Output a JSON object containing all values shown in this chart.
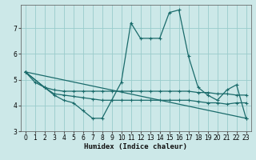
{
  "xlabel": "Humidex (Indice chaleur)",
  "bg_color": "#cce8e8",
  "grid_color": "#99cccc",
  "line_color": "#1a6b6b",
  "xlim": [
    -0.5,
    23.5
  ],
  "ylim": [
    3.0,
    7.9
  ],
  "yticks": [
    3,
    4,
    5,
    6,
    7
  ],
  "xticks": [
    0,
    1,
    2,
    3,
    4,
    5,
    6,
    7,
    8,
    9,
    10,
    11,
    12,
    13,
    14,
    15,
    16,
    17,
    18,
    19,
    20,
    21,
    22,
    23
  ],
  "line1_x": [
    0,
    1,
    2,
    3,
    4,
    5,
    6,
    7,
    8,
    9,
    10,
    11,
    12,
    13,
    14,
    15,
    16,
    17,
    18,
    19,
    20,
    21,
    22,
    23
  ],
  "line1_y": [
    5.3,
    4.9,
    4.7,
    4.4,
    4.2,
    4.1,
    3.8,
    3.5,
    3.5,
    4.2,
    4.9,
    7.2,
    6.6,
    6.6,
    6.6,
    7.6,
    7.7,
    5.9,
    4.7,
    4.4,
    4.2,
    4.6,
    4.8,
    3.5
  ],
  "line2_x": [
    0,
    2,
    3,
    4,
    5,
    6,
    7,
    8,
    9,
    10,
    11,
    12,
    13,
    14,
    15,
    16,
    17,
    18,
    19,
    20,
    21,
    22,
    23
  ],
  "line2_y": [
    5.3,
    4.7,
    4.6,
    4.55,
    4.55,
    4.55,
    4.55,
    4.55,
    4.55,
    4.55,
    4.55,
    4.55,
    4.55,
    4.55,
    4.55,
    4.55,
    4.55,
    4.5,
    4.5,
    4.45,
    4.45,
    4.4,
    4.4
  ],
  "line3_x": [
    0,
    2,
    3,
    4,
    5,
    6,
    7,
    8,
    9,
    10,
    11,
    12,
    13,
    14,
    15,
    16,
    17,
    18,
    19,
    20,
    21,
    22,
    23
  ],
  "line3_y": [
    5.3,
    4.7,
    4.45,
    4.4,
    4.35,
    4.3,
    4.25,
    4.2,
    4.2,
    4.2,
    4.2,
    4.2,
    4.2,
    4.2,
    4.2,
    4.2,
    4.2,
    4.15,
    4.1,
    4.1,
    4.05,
    4.1,
    4.1
  ],
  "line4_x": [
    0,
    23
  ],
  "line4_y": [
    5.3,
    3.5
  ]
}
